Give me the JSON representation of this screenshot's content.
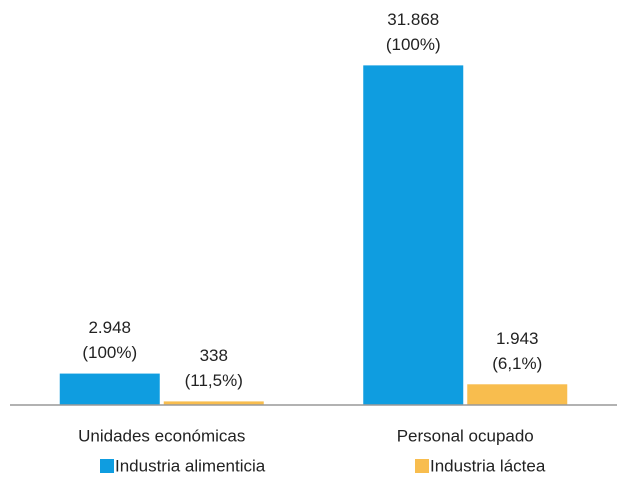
{
  "chart_data": {
    "type": "bar",
    "categories": [
      "Unidades económicas",
      "Personal ocupado"
    ],
    "series": [
      {
        "name": "Industria alimenticia",
        "color": "#0f9de0",
        "values": [
          2948,
          31868
        ],
        "value_labels": [
          "2.948",
          "31.868"
        ],
        "share_labels": [
          "(100%)",
          "(100%)"
        ]
      },
      {
        "name": "Industria láctea",
        "color": "#f8bd4e",
        "values": [
          338,
          1943
        ],
        "value_labels": [
          "338",
          "1.943"
        ],
        "share_labels": [
          "(11,5%)",
          "(6,1%)"
        ]
      }
    ],
    "ylim": [
      0,
      35000
    ],
    "legend": "bottom"
  }
}
